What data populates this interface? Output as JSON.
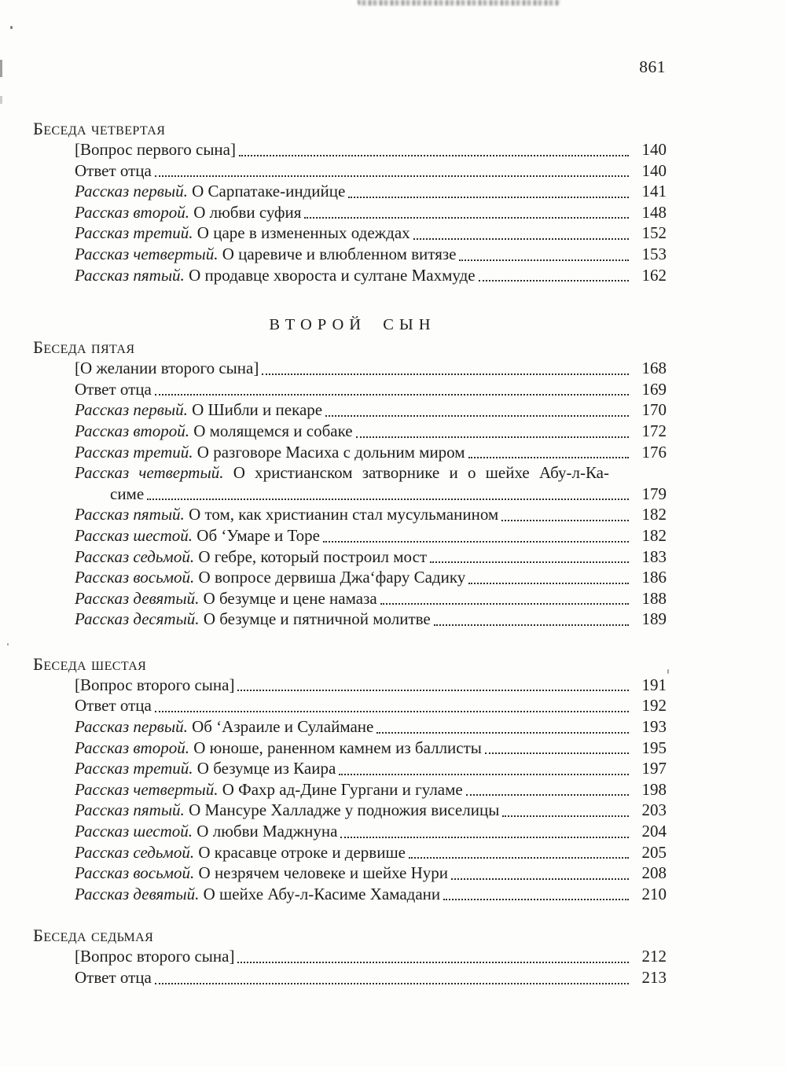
{
  "page_number": "861",
  "colors": {
    "ink": "#1d1d1b",
    "paper": "#fdfdfc"
  },
  "sections": [
    {
      "type": "chapter",
      "heading": "Беседа четвертая",
      "entries": [
        {
          "label": "",
          "title": "[Вопрос первого сына]",
          "page": "140"
        },
        {
          "label": "",
          "title": "Ответ отца",
          "page": "140"
        },
        {
          "label": "Рассказ первый.",
          "title": "О Сарпатаке-индийце",
          "page": "141"
        },
        {
          "label": "Рассказ второй.",
          "title": "О любви суфия",
          "page": "148"
        },
        {
          "label": "Рассказ третий.",
          "title": "О царе в измененных одеждах",
          "page": "152"
        },
        {
          "label": "Рассказ четвертый.",
          "title": "О царевиче и влюбленном витязе",
          "page": "153"
        },
        {
          "label": "Рассказ пятый.",
          "title": "О продавце хвороста и султане Махмуде",
          "page": "162"
        }
      ]
    },
    {
      "type": "part",
      "heading": "ВТОРОЙ СЫН",
      "entries": []
    },
    {
      "type": "chapter",
      "heading": "Беседа пятая",
      "entries": [
        {
          "label": "",
          "title": "[О желании второго сына]",
          "page": "168"
        },
        {
          "label": "",
          "title": "Ответ отца",
          "page": "169"
        },
        {
          "label": "Рассказ первый.",
          "title": "О Шибли и пекаре",
          "page": "170"
        },
        {
          "label": "Рассказ второй.",
          "title": "О молящемся и собаке",
          "page": "172"
        },
        {
          "label": "Рассказ третий.",
          "title": "О разговоре Масиха с дольним миром",
          "page": "176"
        },
        {
          "label": "Рассказ четвертый.",
          "title": "О христианском затворнике и о шейхе Абу-л-Ка-",
          "page": "",
          "wrap": "start"
        },
        {
          "label": "",
          "title": "симе",
          "page": "179",
          "wrap": "end"
        },
        {
          "label": "Рассказ пятый.",
          "title": "О том, как христианин стал мусульманином",
          "page": "182"
        },
        {
          "label": "Рассказ шестой.",
          "title": "Об ‘Умаре и Торе",
          "page": "182"
        },
        {
          "label": "Рассказ седьмой.",
          "title": "О гебре, который построил мост",
          "page": "183"
        },
        {
          "label": "Рассказ восьмой.",
          "title": "О вопросе дервиша Джа‘фару Садику",
          "page": "186"
        },
        {
          "label": "Рассказ девятый.",
          "title": "О безумце и цене намаза",
          "page": "188"
        },
        {
          "label": "Рассказ десятый.",
          "title": "О безумце и пятничной молитве",
          "page": "189"
        }
      ]
    },
    {
      "type": "chapter",
      "heading": "Беседа шестая",
      "entries": [
        {
          "label": "",
          "title": "[Вопрос второго сына]",
          "page": "191"
        },
        {
          "label": "",
          "title": "Ответ отца",
          "page": "192"
        },
        {
          "label": "Рассказ первый.",
          "title": "Об ‘Азраиле и Сулаймане",
          "page": "193"
        },
        {
          "label": "Рассказ второй.",
          "title": "О юноше, раненном камнем из баллисты",
          "page": "195"
        },
        {
          "label": "Рассказ третий.",
          "title": "О безумце из Каира",
          "page": "197"
        },
        {
          "label": "Рассказ четвертый.",
          "title": "О Фахр ад-Дине Гургани и гуламе",
          "page": "198"
        },
        {
          "label": "Рассказ пятый.",
          "title": "О Мансуре Халладже у подножия виселицы",
          "page": "203"
        },
        {
          "label": "Рассказ шестой.",
          "title": "О любви Маджнуна",
          "page": "204"
        },
        {
          "label": "Рассказ седьмой.",
          "title": "О красавце отроке и дервише",
          "page": "205"
        },
        {
          "label": "Рассказ восьмой.",
          "title": "О незрячем человеке и шейхе Нури",
          "page": "208"
        },
        {
          "label": "Рассказ девятый.",
          "title": "О шейхе Абу-л-Касиме Хамадани",
          "page": "210"
        }
      ]
    },
    {
      "type": "chapter",
      "heading": "Беседа седьмая",
      "entries": [
        {
          "label": "",
          "title": "[Вопрос второго сына]",
          "page": "212"
        },
        {
          "label": "",
          "title": "Ответ отца",
          "page": "213"
        }
      ]
    }
  ]
}
